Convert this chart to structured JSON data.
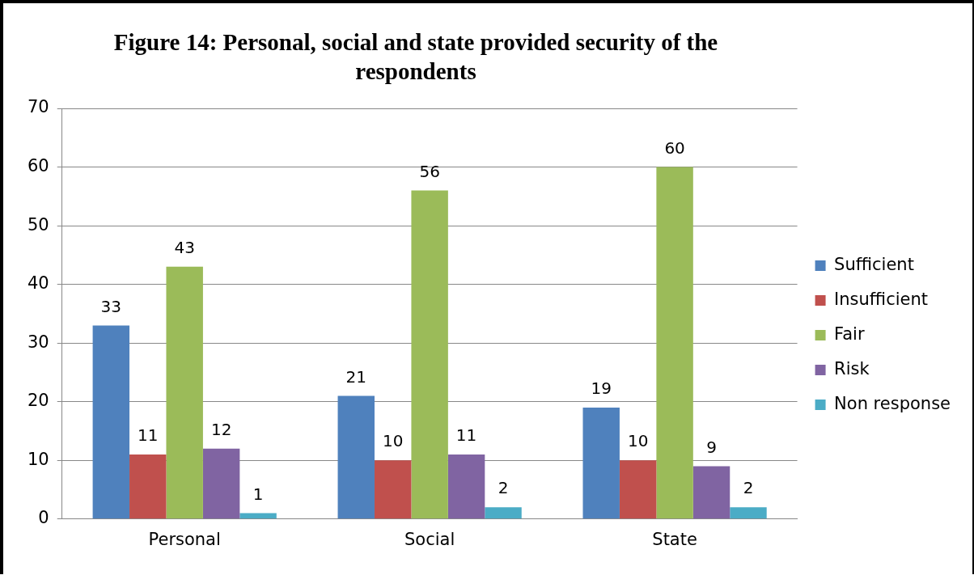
{
  "chart_data": {
    "type": "bar",
    "title": "Figure 14: Personal, social and state  provided security of the respondents",
    "categories": [
      "Personal",
      "Social",
      "State"
    ],
    "series": [
      {
        "name": "Sufficient",
        "color": "#4f81bd",
        "values": [
          33,
          21,
          19
        ]
      },
      {
        "name": "Insufficient",
        "color": "#c0504d",
        "values": [
          11,
          10,
          10
        ]
      },
      {
        "name": "Fair",
        "color": "#9bbb59",
        "values": [
          43,
          56,
          60
        ]
      },
      {
        "name": "Risk",
        "color": "#8064a2",
        "values": [
          12,
          11,
          9
        ]
      },
      {
        "name": "Non response",
        "color": "#4bacc6",
        "values": [
          1,
          2,
          2
        ]
      }
    ],
    "ylim": [
      0,
      70
    ],
    "yticks": [
      0,
      10,
      20,
      30,
      40,
      50,
      60,
      70
    ],
    "grid": "y",
    "legend": "right",
    "data_labels": true
  }
}
